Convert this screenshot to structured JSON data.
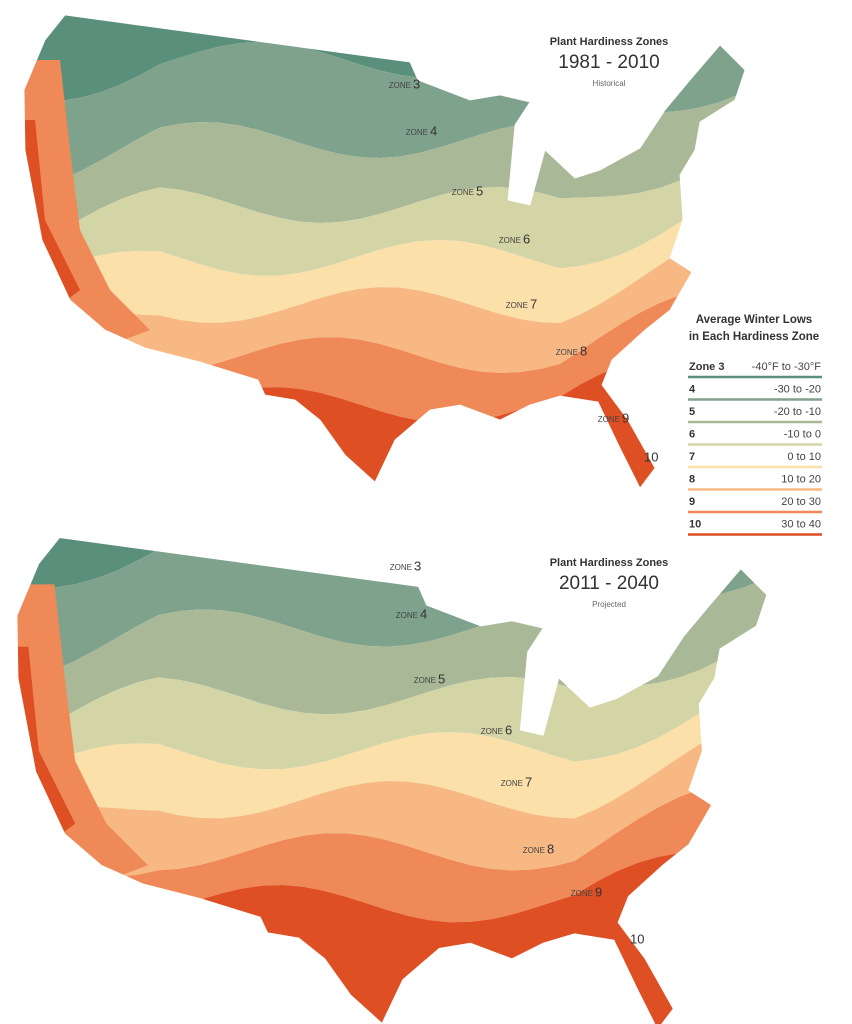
{
  "maps": [
    {
      "title": "Plant Hardiness Zones",
      "period": "1981 - 2010",
      "subtitle": "Historical",
      "zone_labels": [
        {
          "prefix": "ZONE",
          "number": "3"
        },
        {
          "prefix": "ZONE",
          "number": "4"
        },
        {
          "prefix": "ZONE",
          "number": "5"
        },
        {
          "prefix": "ZONE",
          "number": "6"
        },
        {
          "prefix": "ZONE",
          "number": "7"
        },
        {
          "prefix": "ZONE",
          "number": "8"
        },
        {
          "prefix": "ZONE",
          "number": "9"
        },
        {
          "number": "10"
        }
      ]
    },
    {
      "title": "Plant Hardiness Zones",
      "period": "2011 - 2040",
      "subtitle": "Projected",
      "zone_labels": [
        {
          "prefix": "ZONE",
          "number": "3"
        },
        {
          "prefix": "ZONE",
          "number": "4"
        },
        {
          "prefix": "ZONE",
          "number": "5"
        },
        {
          "prefix": "ZONE",
          "number": "6"
        },
        {
          "prefix": "ZONE",
          "number": "7"
        },
        {
          "prefix": "ZONE",
          "number": "8"
        },
        {
          "prefix": "ZONE",
          "number": "9"
        },
        {
          "number": "10"
        }
      ]
    }
  ],
  "legend": {
    "title": [
      "Average Winter Lows",
      "in Each Hardiness Zone"
    ],
    "rows": [
      {
        "zone": "Zone 3",
        "range": "-40°F to -30°F",
        "color": "#5a8f7b"
      },
      {
        "zone": "4",
        "range": "-30 to -20",
        "color": "#7fa28d"
      },
      {
        "zone": "5",
        "range": "-20 to -10",
        "color": "#a9b997"
      },
      {
        "zone": "6",
        "range": "-10 to 0",
        "color": "#d3d5a6"
      },
      {
        "zone": "7",
        "range": "0 to 10",
        "color": "#fbe0aa"
      },
      {
        "zone": "8",
        "range": "10 to 20",
        "color": "#f7b884"
      },
      {
        "zone": "9",
        "range": "20 to 30",
        "color": "#ef8a58"
      },
      {
        "zone": "10",
        "range": "30 to 40",
        "color": "#de4f24"
      }
    ]
  }
}
